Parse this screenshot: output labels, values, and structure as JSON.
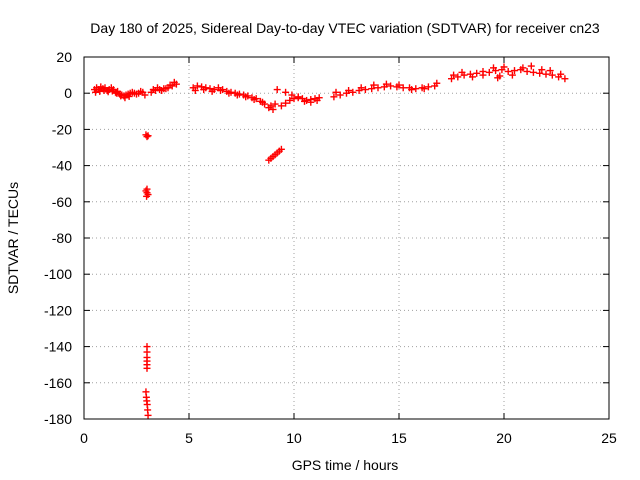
{
  "chart_data": {
    "type": "scatter",
    "title": "Day 180 of 2025, Sidereal Day-to-day VTEC variation (SDTVAR) for receiver cn23",
    "xlabel": "GPS time / hours",
    "ylabel": "SDTVAR / TECUs",
    "xlim": [
      0,
      25
    ],
    "ylim": [
      -180,
      20
    ],
    "xticks": [
      0,
      5,
      10,
      15,
      20,
      25
    ],
    "xtick_labels": [
      "0",
      "5",
      "10",
      "15",
      "20",
      "25"
    ],
    "yticks": [
      20,
      0,
      -20,
      -40,
      -60,
      -80,
      -100,
      -120,
      -140,
      -160,
      -180
    ],
    "ytick_labels": [
      "20",
      "0",
      "-20",
      "-40",
      "-60",
      "-80",
      "-100",
      "-120",
      "-140",
      "-160",
      "-180"
    ],
    "grid": true,
    "marker": "+",
    "series": [
      {
        "name": "SDTVAR",
        "color": "#ff0000",
        "segments": [
          {
            "x": [
              0.5,
              0.6,
              0.7,
              0.8,
              0.9,
              1.0,
              1.1,
              1.2,
              1.3,
              1.4,
              1.5,
              1.6,
              1.7,
              1.8,
              1.9,
              2.0,
              2.1,
              2.2,
              2.3,
              2.4
            ],
            "y": [
              2.0,
              3.0,
              2.0,
              3.5,
              2.5,
              3.0,
              1.5,
              2.0,
              3.0,
              2.0,
              0.5,
              1.0,
              -0.5,
              -1.0,
              -1.5,
              -1.0,
              -0.5,
              0.0,
              0.5,
              0.0
            ]
          },
          {
            "x": [
              0.55,
              0.75,
              0.95,
              1.15,
              1.35,
              1.55,
              1.75,
              1.95,
              2.15
            ],
            "y": [
              0.5,
              1.0,
              1.5,
              0.8,
              1.2,
              0.0,
              -1.5,
              -2.5,
              -1.8
            ]
          },
          {
            "x": [
              2.5,
              2.6,
              2.7,
              2.8,
              2.9
            ],
            "y": [
              -0.5,
              0.0,
              1.0,
              0.5,
              -1.0
            ]
          },
          {
            "x": [
              3.2,
              3.4,
              3.6,
              3.8,
              4.0,
              4.2,
              4.4
            ],
            "y": [
              0.5,
              1.5,
              2.0,
              2.5,
              3.0,
              4.0,
              5.0
            ]
          },
          {
            "x": [
              3.3,
              3.5,
              3.7,
              3.9,
              4.1,
              4.3
            ],
            "y": [
              2.0,
              3.0,
              1.5,
              2.5,
              4.5,
              6.0
            ]
          },
          {
            "x": [
              2.95,
              3.0,
              3.05
            ],
            "y": [
              -23,
              -24,
              -23.5
            ]
          },
          {
            "x": [
              2.95,
              3.0,
              3.05,
              3.0,
              2.98
            ],
            "y": [
              -54,
              -55,
              -56,
              -53,
              -57
            ]
          },
          {
            "x": [
              3.0,
              3.0,
              3.0,
              3.0,
              3.0,
              3.0
            ],
            "y": [
              -140,
              -143,
              -146,
              -148,
              -150,
              -152
            ]
          },
          {
            "x": [
              2.95,
              2.97,
              2.99,
              3.01,
              3.03,
              3.05
            ],
            "y": [
              -165,
              -168,
              -170,
              -172,
              -175,
              -178
            ]
          },
          {
            "x": [
              5.2,
              5.4,
              5.6,
              5.8,
              6.0,
              6.2,
              6.4,
              6.6,
              6.8,
              7.0,
              7.2,
              7.4,
              7.6,
              7.8,
              8.0,
              8.2,
              8.4,
              8.6,
              8.8,
              9.0
            ],
            "y": [
              3.0,
              4.0,
              3.5,
              3.0,
              2.5,
              2.0,
              3.0,
              2.0,
              1.0,
              0.5,
              0.0,
              -0.5,
              -1.0,
              -1.5,
              -2.5,
              -3.0,
              -4.5,
              -6.0,
              -8.0,
              -9.0
            ]
          },
          {
            "x": [
              5.3,
              5.7,
              6.1,
              6.5,
              6.9,
              7.3,
              7.7,
              8.1,
              8.5,
              8.9,
              9.1
            ],
            "y": [
              1.5,
              2.0,
              1.0,
              1.5,
              0.0,
              -1.0,
              -2.0,
              -3.5,
              -5.0,
              -7.0,
              -6.0
            ]
          },
          {
            "x": [
              8.8,
              8.9,
              9.0,
              9.1,
              9.2,
              9.3,
              9.4
            ],
            "y": [
              -37,
              -36,
              -35,
              -34,
              -33,
              -32,
              -31
            ]
          },
          {
            "x": [
              9.2
            ],
            "y": [
              2.0
            ]
          },
          {
            "x": [
              9.4,
              9.6,
              9.8,
              10.0,
              10.2,
              10.4,
              10.6,
              10.8,
              11.0,
              11.2
            ],
            "y": [
              -7.0,
              -5.5,
              -4.0,
              -3.0,
              -2.5,
              -3.0,
              -4.0,
              -3.5,
              -3.0,
              -2.5
            ]
          },
          {
            "x": [
              9.6,
              9.9,
              10.2,
              10.5,
              10.8,
              11.1
            ],
            "y": [
              0.5,
              -1.0,
              -2.0,
              -4.5,
              -5.0,
              -4.0
            ]
          },
          {
            "x": [
              11.9,
              12.2,
              12.5,
              12.8,
              13.1,
              13.4,
              13.7,
              14.0,
              14.3,
              14.6,
              14.9,
              15.2,
              15.5,
              15.8,
              16.1,
              16.4,
              16.7
            ],
            "y": [
              -2.0,
              -1.0,
              0.0,
              0.5,
              1.5,
              2.0,
              2.5,
              3.0,
              3.5,
              4.0,
              3.5,
              3.0,
              3.0,
              2.5,
              3.0,
              3.5,
              4.0
            ]
          },
          {
            "x": [
              12.0,
              12.6,
              13.2,
              13.8,
              14.4,
              15.0,
              15.6,
              16.2,
              16.8
            ],
            "y": [
              0.5,
              1.5,
              3.0,
              4.5,
              5.0,
              4.5,
              2.0,
              2.5,
              5.5
            ]
          },
          {
            "x": [
              17.5,
              17.8,
              18.1,
              18.4,
              18.7,
              19.0,
              19.3,
              19.6,
              19.9,
              20.2,
              20.5,
              20.8,
              21.1,
              21.4,
              21.7,
              22.0,
              22.3,
              22.6,
              22.9
            ],
            "y": [
              8.0,
              9.0,
              10.0,
              10.5,
              11.0,
              12.0,
              11.5,
              12.5,
              13.0,
              12.0,
              12.5,
              13.0,
              12.0,
              11.5,
              11.0,
              10.5,
              10.0,
              9.0,
              8.0
            ]
          },
          {
            "x": [
              17.6,
              18.0,
              18.5,
              19.0,
              19.5,
              19.7,
              19.8,
              20.0,
              20.4,
              20.9,
              21.3,
              21.8,
              22.2,
              22.7
            ],
            "y": [
              10.0,
              11.5,
              9.0,
              10.0,
              14.0,
              8.5,
              9.5,
              14.5,
              10.0,
              14.0,
              15.0,
              13.0,
              12.5,
              10.5
            ]
          }
        ]
      }
    ]
  }
}
